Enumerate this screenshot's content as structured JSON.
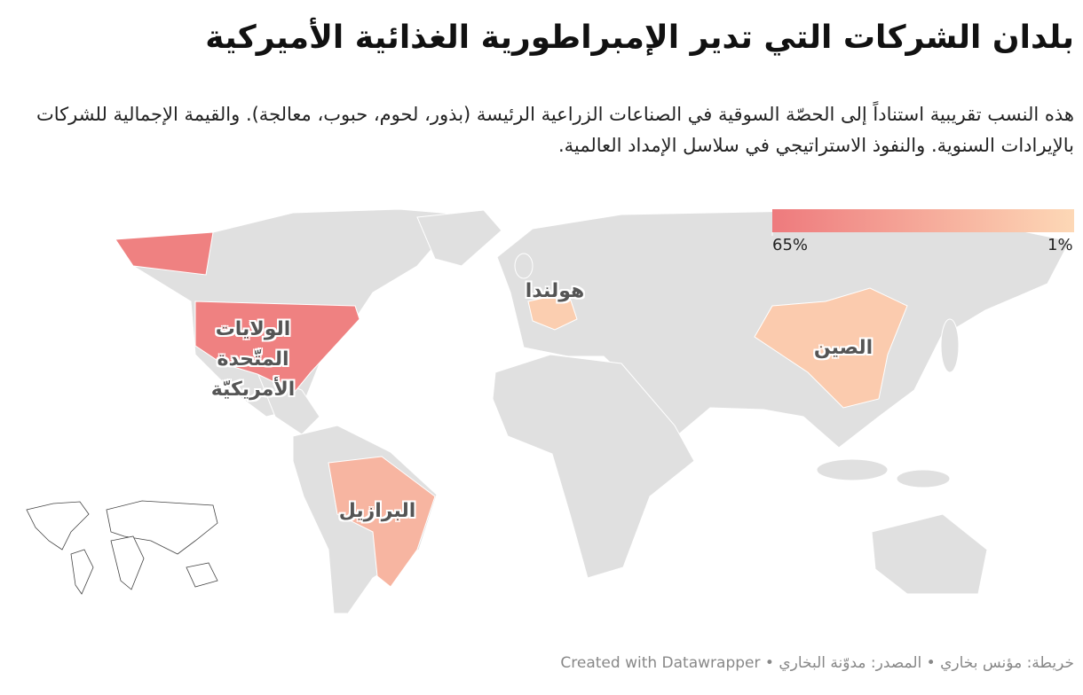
{
  "chart_data": {
    "type": "choropleth",
    "title": "بلدان الشركات التي تدير الإمبراطورية الغذائية الأميركية",
    "subtitle": "هذه النسب تقريبية استناداً إلى الحصّة السوقية في الصناعات الزراعية الرئيسة (بذور، لحوم، حبوب، معالجة). والقيمة الإجمالية للشركات بالإيرادات السنوية. والنفوذ الاستراتيجي في سلاسل الإمداد العالمية.",
    "regions": [
      {
        "name": "الولايات المتّحدة الأمريكيّة",
        "value": 60
      },
      {
        "name": "هولندا",
        "value": 8
      },
      {
        "name": "الصين",
        "value": 10
      },
      {
        "name": "البرازيل",
        "value": 25
      }
    ],
    "legend": {
      "range": [
        65,
        1
      ],
      "colors": [
        "#ee7a7d",
        "#fdd8b6"
      ],
      "ticks": [
        {
          "value": 65,
          "label": "65%"
        },
        {
          "value": 1,
          "label": "1%"
        }
      ]
    },
    "footer": "خريطة: مؤنس بخاري • المصدر: مدوّنة البخاري • Created with Datawrapper"
  }
}
